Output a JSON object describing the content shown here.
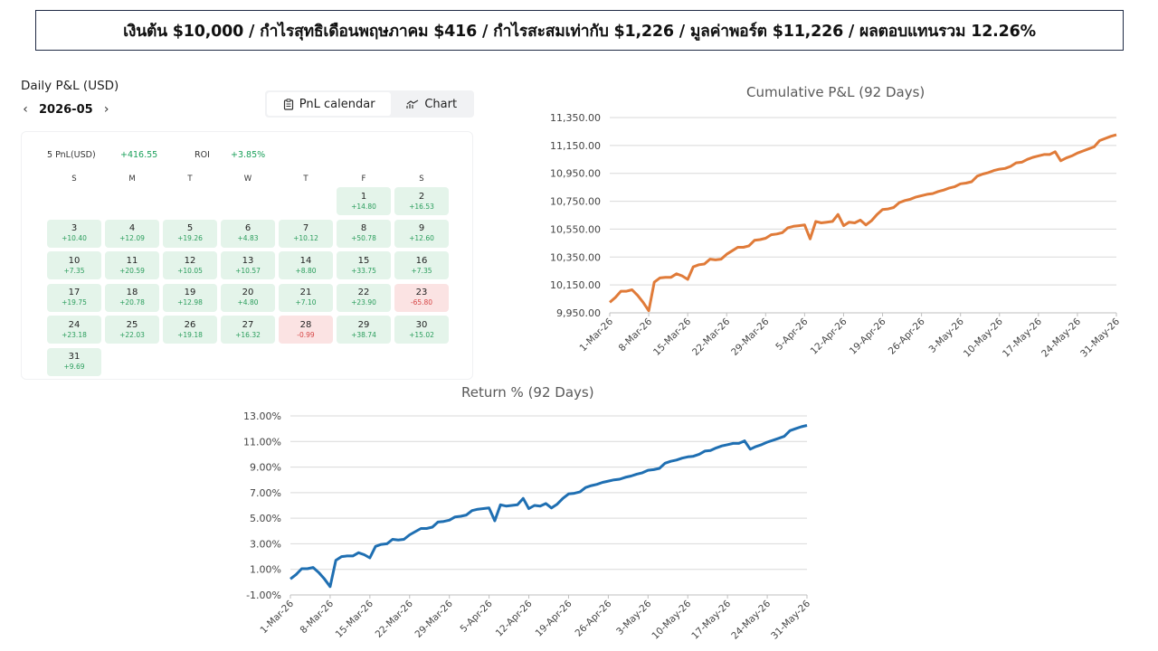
{
  "banner": {
    "text": "เงินต้น $10,000  /  กำไรสุทธิเดือนพฤษภาคม $416  /  กำไรสะสมเท่ากับ $1,226  /  มูลค่าพอร์ต $11,226 / ผลตอบแทนรวม 12.26%"
  },
  "calendar": {
    "title": "Daily P&L (USD)",
    "month": "2026-05",
    "prev_icon": "chevron-left-icon",
    "next_icon": "chevron-right-icon",
    "tabs": [
      {
        "label": "PnL calendar",
        "icon": "calendar-icon",
        "active": true
      },
      {
        "label": "Chart",
        "icon": "chart-icon",
        "active": false
      }
    ],
    "summary": {
      "pnl_label": "5 PnL(USD)",
      "pnl_value": "+416.55",
      "roi_label": "ROI",
      "roi_value": "+3.85%"
    },
    "weekdays": [
      "S",
      "M",
      "T",
      "W",
      "T",
      "F",
      "S"
    ],
    "first_weekday_index": 5,
    "days": [
      {
        "day": "1",
        "value": "+14.80"
      },
      {
        "day": "2",
        "value": "+16.53"
      },
      {
        "day": "3",
        "value": "+10.40"
      },
      {
        "day": "4",
        "value": "+12.09"
      },
      {
        "day": "5",
        "value": "+19.26"
      },
      {
        "day": "6",
        "value": "+4.83"
      },
      {
        "day": "7",
        "value": "+10.12"
      },
      {
        "day": "8",
        "value": "+50.78"
      },
      {
        "day": "9",
        "value": "+12.60"
      },
      {
        "day": "10",
        "value": "+7.35"
      },
      {
        "day": "11",
        "value": "+20.59"
      },
      {
        "day": "12",
        "value": "+10.05"
      },
      {
        "day": "13",
        "value": "+10.57"
      },
      {
        "day": "14",
        "value": "+8.80"
      },
      {
        "day": "15",
        "value": "+33.75"
      },
      {
        "day": "16",
        "value": "+7.35"
      },
      {
        "day": "17",
        "value": "+19.75"
      },
      {
        "day": "18",
        "value": "+20.78"
      },
      {
        "day": "19",
        "value": "+12.98"
      },
      {
        "day": "20",
        "value": "+4.80"
      },
      {
        "day": "21",
        "value": "+7.10"
      },
      {
        "day": "22",
        "value": "+23.90"
      },
      {
        "day": "23",
        "value": "-65.80"
      },
      {
        "day": "24",
        "value": "+23.18"
      },
      {
        "day": "25",
        "value": "+22.03"
      },
      {
        "day": "26",
        "value": "+19.18"
      },
      {
        "day": "27",
        "value": "+16.32"
      },
      {
        "day": "28",
        "value": "-0.99"
      },
      {
        "day": "29",
        "value": "+38.74"
      },
      {
        "day": "30",
        "value": "+15.02"
      },
      {
        "day": "31",
        "value": "+9.69"
      }
    ]
  },
  "chart_data": [
    {
      "type": "line",
      "title": "Cumulative P&L (92 Days)",
      "color": "#e07b39",
      "ylim": [
        9950,
        11350
      ],
      "yticks": [
        9950,
        10150,
        10350,
        10550,
        10750,
        10950,
        11150,
        11350
      ],
      "ytick_labels": [
        "9,950.00",
        "10,150.00",
        "10,350.00",
        "10,550.00",
        "10,750.00",
        "10,950.00",
        "11,150.00",
        "11,350.00"
      ],
      "xtick_labels": [
        "1-Mar-26",
        "8-Mar-26",
        "15-Mar-26",
        "22-Mar-26",
        "29-Mar-26",
        "5-Apr-26",
        "12-Apr-26",
        "19-Apr-26",
        "26-Apr-26",
        "3-May-26",
        "10-May-26",
        "17-May-26",
        "24-May-26",
        "31-May-26"
      ],
      "grid": true,
      "series": [
        {
          "values": [
            10025,
            10060,
            10105,
            10105,
            10115,
            10075,
            10025,
            9965,
            10170,
            10200,
            10205,
            10205,
            10230,
            10215,
            10190,
            10280,
            10295,
            10300,
            10335,
            10330,
            10335,
            10370,
            10395,
            10420,
            10420,
            10430,
            10470,
            10475,
            10485,
            10510,
            10515,
            10525,
            10560,
            10570,
            10575,
            10580,
            10480,
            10605,
            10595,
            10600,
            10605,
            10655,
            10575,
            10600,
            10595,
            10615,
            10580,
            10610,
            10655,
            10690,
            10695,
            10705,
            10740,
            10755,
            10765,
            10780,
            10790,
            10800,
            10805,
            10820,
            10830,
            10845,
            10855,
            10875,
            10880,
            10890,
            10930,
            10945,
            10955,
            10970,
            10980,
            10985,
            11000,
            11025,
            11030,
            11050,
            11065,
            11075,
            11085,
            11085,
            11105,
            11040,
            11060,
            11075,
            11095,
            11110,
            11125,
            11140,
            11185,
            11200,
            11215,
            11226
          ]
        }
      ]
    },
    {
      "type": "line",
      "title": "Return %  (92 Days)",
      "color": "#1f6fb2",
      "ylim": [
        -1,
        13
      ],
      "yticks": [
        -1,
        1,
        3,
        5,
        7,
        9,
        11,
        13
      ],
      "ytick_labels": [
        "-1.00%",
        "1.00%",
        "3.00%",
        "5.00%",
        "7.00%",
        "9.00%",
        "11.00%",
        "13.00%"
      ],
      "xtick_labels": [
        "1-Mar-26",
        "8-Mar-26",
        "15-Mar-26",
        "22-Mar-26",
        "29-Mar-26",
        "5-Apr-26",
        "12-Apr-26",
        "19-Apr-26",
        "26-Apr-26",
        "3-May-26",
        "10-May-26",
        "17-May-26",
        "24-May-26",
        "31-May-26"
      ],
      "grid": true,
      "series": [
        {
          "values": [
            0.25,
            0.6,
            1.05,
            1.05,
            1.15,
            0.75,
            0.25,
            -0.35,
            1.7,
            2.0,
            2.05,
            2.05,
            2.3,
            2.15,
            1.9,
            2.8,
            2.95,
            3.0,
            3.35,
            3.3,
            3.35,
            3.7,
            3.95,
            4.2,
            4.2,
            4.3,
            4.7,
            4.75,
            4.85,
            5.1,
            5.15,
            5.25,
            5.6,
            5.7,
            5.75,
            5.8,
            4.8,
            6.05,
            5.95,
            6.0,
            6.05,
            6.55,
            5.75,
            6.0,
            5.95,
            6.15,
            5.8,
            6.1,
            6.55,
            6.9,
            6.95,
            7.05,
            7.4,
            7.55,
            7.65,
            7.8,
            7.9,
            8.0,
            8.05,
            8.2,
            8.3,
            8.45,
            8.55,
            8.75,
            8.8,
            8.9,
            9.3,
            9.45,
            9.55,
            9.7,
            9.8,
            9.85,
            10.0,
            10.25,
            10.3,
            10.5,
            10.65,
            10.75,
            10.85,
            10.85,
            11.05,
            10.4,
            10.6,
            10.75,
            10.95,
            11.1,
            11.25,
            11.4,
            11.85,
            12.0,
            12.15,
            12.26
          ]
        }
      ]
    }
  ]
}
